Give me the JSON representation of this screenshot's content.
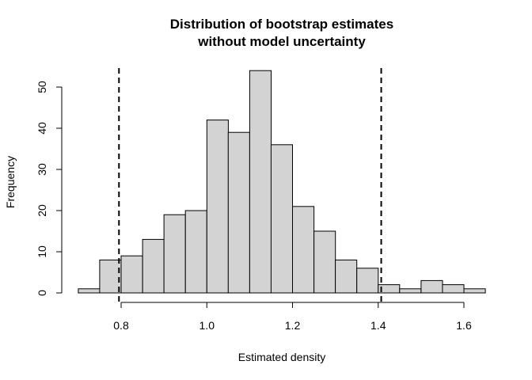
{
  "chart_data": {
    "type": "histogram",
    "title_line1": "Distribution of bootstrap estimates",
    "title_line2": "without model uncertainty",
    "xlabel": "Estimated density",
    "ylabel": "Frequency",
    "bin_width": 0.05,
    "bins": [
      {
        "x0": 0.7,
        "x1": 0.75,
        "count": 1
      },
      {
        "x0": 0.75,
        "x1": 0.8,
        "count": 8
      },
      {
        "x0": 0.8,
        "x1": 0.85,
        "count": 9
      },
      {
        "x0": 0.85,
        "x1": 0.9,
        "count": 13
      },
      {
        "x0": 0.9,
        "x1": 0.95,
        "count": 19
      },
      {
        "x0": 0.95,
        "x1": 1.0,
        "count": 20
      },
      {
        "x0": 1.0,
        "x1": 1.05,
        "count": 42
      },
      {
        "x0": 1.05,
        "x1": 1.1,
        "count": 39
      },
      {
        "x0": 1.1,
        "x1": 1.15,
        "count": 54
      },
      {
        "x0": 1.15,
        "x1": 1.2,
        "count": 36
      },
      {
        "x0": 1.2,
        "x1": 1.25,
        "count": 21
      },
      {
        "x0": 1.25,
        "x1": 1.3,
        "count": 15
      },
      {
        "x0": 1.3,
        "x1": 1.35,
        "count": 8
      },
      {
        "x0": 1.35,
        "x1": 1.4,
        "count": 6
      },
      {
        "x0": 1.4,
        "x1": 1.45,
        "count": 2
      },
      {
        "x0": 1.45,
        "x1": 1.5,
        "count": 1
      },
      {
        "x0": 1.5,
        "x1": 1.55,
        "count": 3
      },
      {
        "x0": 1.55,
        "x1": 1.6,
        "count": 2
      },
      {
        "x0": 1.6,
        "x1": 1.65,
        "count": 1
      }
    ],
    "reference_lines": [
      {
        "x": 0.795,
        "style": "dashed"
      },
      {
        "x": 1.407,
        "style": "dashed"
      }
    ],
    "x_ticks": [
      "0.8",
      "1.0",
      "1.2",
      "1.4",
      "1.6"
    ],
    "x_tick_values": [
      0.8,
      1.0,
      1.2,
      1.4,
      1.6
    ],
    "y_ticks": [
      "0",
      "10",
      "20",
      "30",
      "40",
      "50"
    ],
    "y_tick_values": [
      0,
      10,
      20,
      30,
      40,
      50
    ],
    "xlim": [
      0.7,
      1.65
    ],
    "ylim": [
      0,
      54
    ],
    "grid": false,
    "bar_color": "#d3d3d3",
    "border_color": "#000000"
  }
}
